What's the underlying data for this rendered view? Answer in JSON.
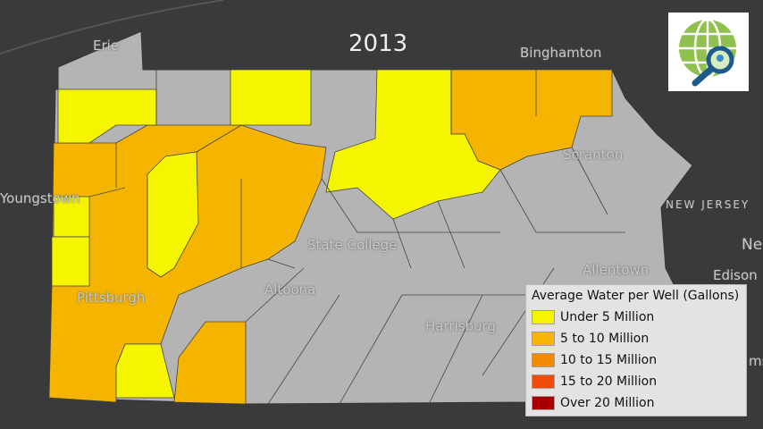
{
  "title": "2013",
  "legend": {
    "title": "Average Water per Well (Gallons)",
    "items": [
      {
        "label": "Under 5 Million",
        "color": "#f5f500"
      },
      {
        "label": "5 to 10 Million",
        "color": "#f4b400"
      },
      {
        "label": "10 to 15 Million",
        "color": "#f28a00"
      },
      {
        "label": "15 to 20 Million",
        "color": "#ee4a0a"
      },
      {
        "label": "Over 20 Million",
        "color": "#a80000"
      }
    ]
  },
  "places": {
    "erie": "Erie",
    "binghamton": "Binghamton",
    "youngstown": "Youngstown",
    "scranton": "Scranton",
    "new_jersey": "NEW JERSEY",
    "ne": "Ne",
    "edison": "Edison",
    "allentown": "Allentown",
    "state_college": "State College",
    "altoona": "Altoona",
    "pittsburgh": "Pittsburgh",
    "harrisburg": "Harrisburg",
    "ms": "ms"
  },
  "colors": {
    "background": "#3a3a3c",
    "no_data": "#b4b4b4"
  },
  "logo": "globe-magnifier-logo"
}
